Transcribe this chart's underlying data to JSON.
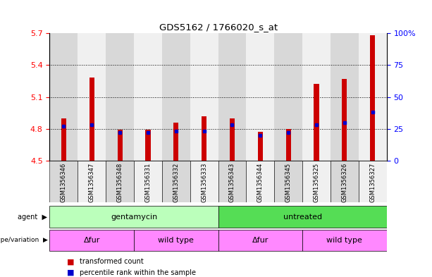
{
  "title": "GDS5162 / 1766020_s_at",
  "samples": [
    "GSM1356346",
    "GSM1356347",
    "GSM1356348",
    "GSM1356331",
    "GSM1356332",
    "GSM1356333",
    "GSM1356343",
    "GSM1356344",
    "GSM1356345",
    "GSM1356325",
    "GSM1356326",
    "GSM1356327"
  ],
  "bar_values": [
    4.9,
    5.28,
    4.79,
    4.79,
    4.86,
    4.92,
    4.9,
    4.77,
    4.8,
    5.22,
    5.27,
    5.68
  ],
  "percentile_ranks": [
    27,
    28,
    22,
    22,
    23,
    23,
    28,
    20,
    22,
    28,
    30,
    38
  ],
  "bar_bottom": 4.5,
  "ylim_left": [
    4.5,
    5.7
  ],
  "ylim_right": [
    0,
    100
  ],
  "yticks_left": [
    4.5,
    4.8,
    5.1,
    5.4,
    5.7
  ],
  "yticks_right": [
    0,
    25,
    50,
    75,
    100
  ],
  "bar_color": "#cc0000",
  "percentile_color": "#0000cc",
  "agent_labels": [
    {
      "text": "gentamycin",
      "start": 0,
      "end": 5,
      "color": "#bbffbb"
    },
    {
      "text": "untreated",
      "start": 6,
      "end": 11,
      "color": "#55dd55"
    }
  ],
  "genotype_labels": [
    {
      "text": "Δfur",
      "start": 0,
      "end": 2,
      "color": "#ff88ff"
    },
    {
      "text": "wild type",
      "start": 3,
      "end": 5,
      "color": "#ff88ff"
    },
    {
      "text": "Δfur",
      "start": 6,
      "end": 8,
      "color": "#ff88ff"
    },
    {
      "text": "wild type",
      "start": 9,
      "end": 11,
      "color": "#ff88ff"
    }
  ],
  "legend_items": [
    {
      "label": "transformed count",
      "color": "#cc0000"
    },
    {
      "label": "percentile rank within the sample",
      "color": "#0000cc"
    }
  ],
  "col_colors": [
    "#d8d8d8",
    "#f0f0f0"
  ]
}
